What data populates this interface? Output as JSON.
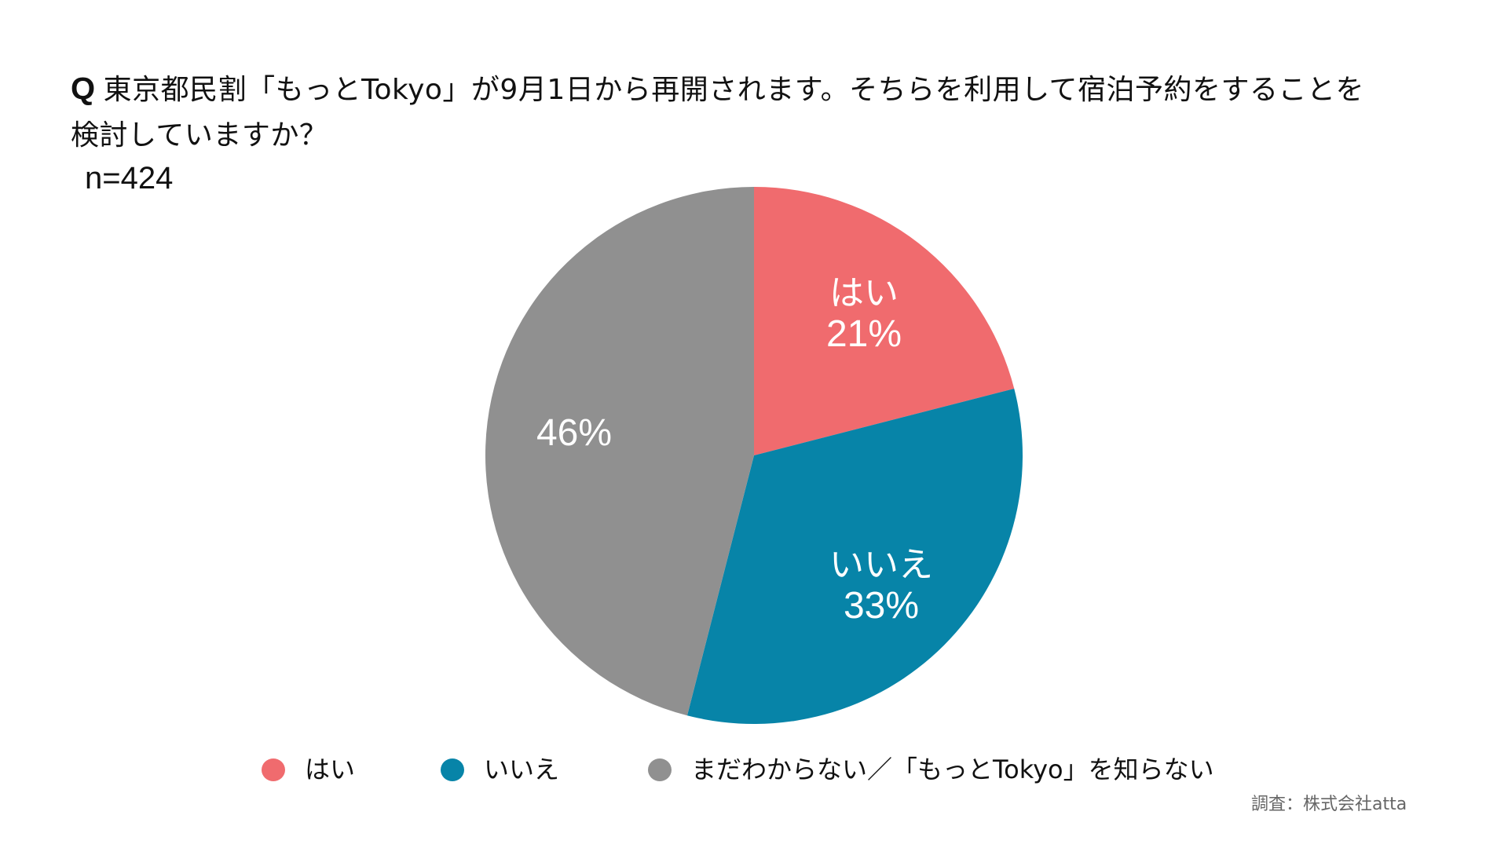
{
  "question": {
    "prefix": "Q",
    "line1": "東京都民割「もっとTokyo」が9月1日から再開されます。そちらを利用して宿泊予約をすることを",
    "line2": "検討していますか？"
  },
  "sample_size": "n=424",
  "legend": [
    {
      "label": "はい",
      "color": "#F06B6E"
    },
    {
      "label": "いいえ",
      "color": "#0784A8"
    },
    {
      "label": "まだわからない／「もっとTokyo」を知らない",
      "color": "#909090"
    }
  ],
  "slice_labels": [
    {
      "category": "はい",
      "percent": "21%"
    },
    {
      "category": "いいえ",
      "percent": "33%"
    },
    {
      "category": "",
      "percent": "46%"
    }
  ],
  "footer": {
    "source": "調査：株式会社atta"
  },
  "chart_data": {
    "type": "pie",
    "title": "Q 東京都民割「もっとTokyo」が9月1日から再開されます。そちらを利用して宿泊予約をすることを検討していますか？",
    "subtitle": "n=424",
    "categories": [
      "はい",
      "いいえ",
      "まだわからない／「もっとTokyo」を知らない"
    ],
    "values": [
      21,
      33,
      46
    ],
    "unit": "%",
    "colors": [
      "#F06B6E",
      "#0784A8",
      "#909090"
    ],
    "start_angle": "12 o'clock, clockwise",
    "legend_position": "bottom",
    "data_labels": [
      "はい 21%",
      "いいえ 33%",
      "46%"
    ],
    "source": "調査：株式会社atta"
  }
}
